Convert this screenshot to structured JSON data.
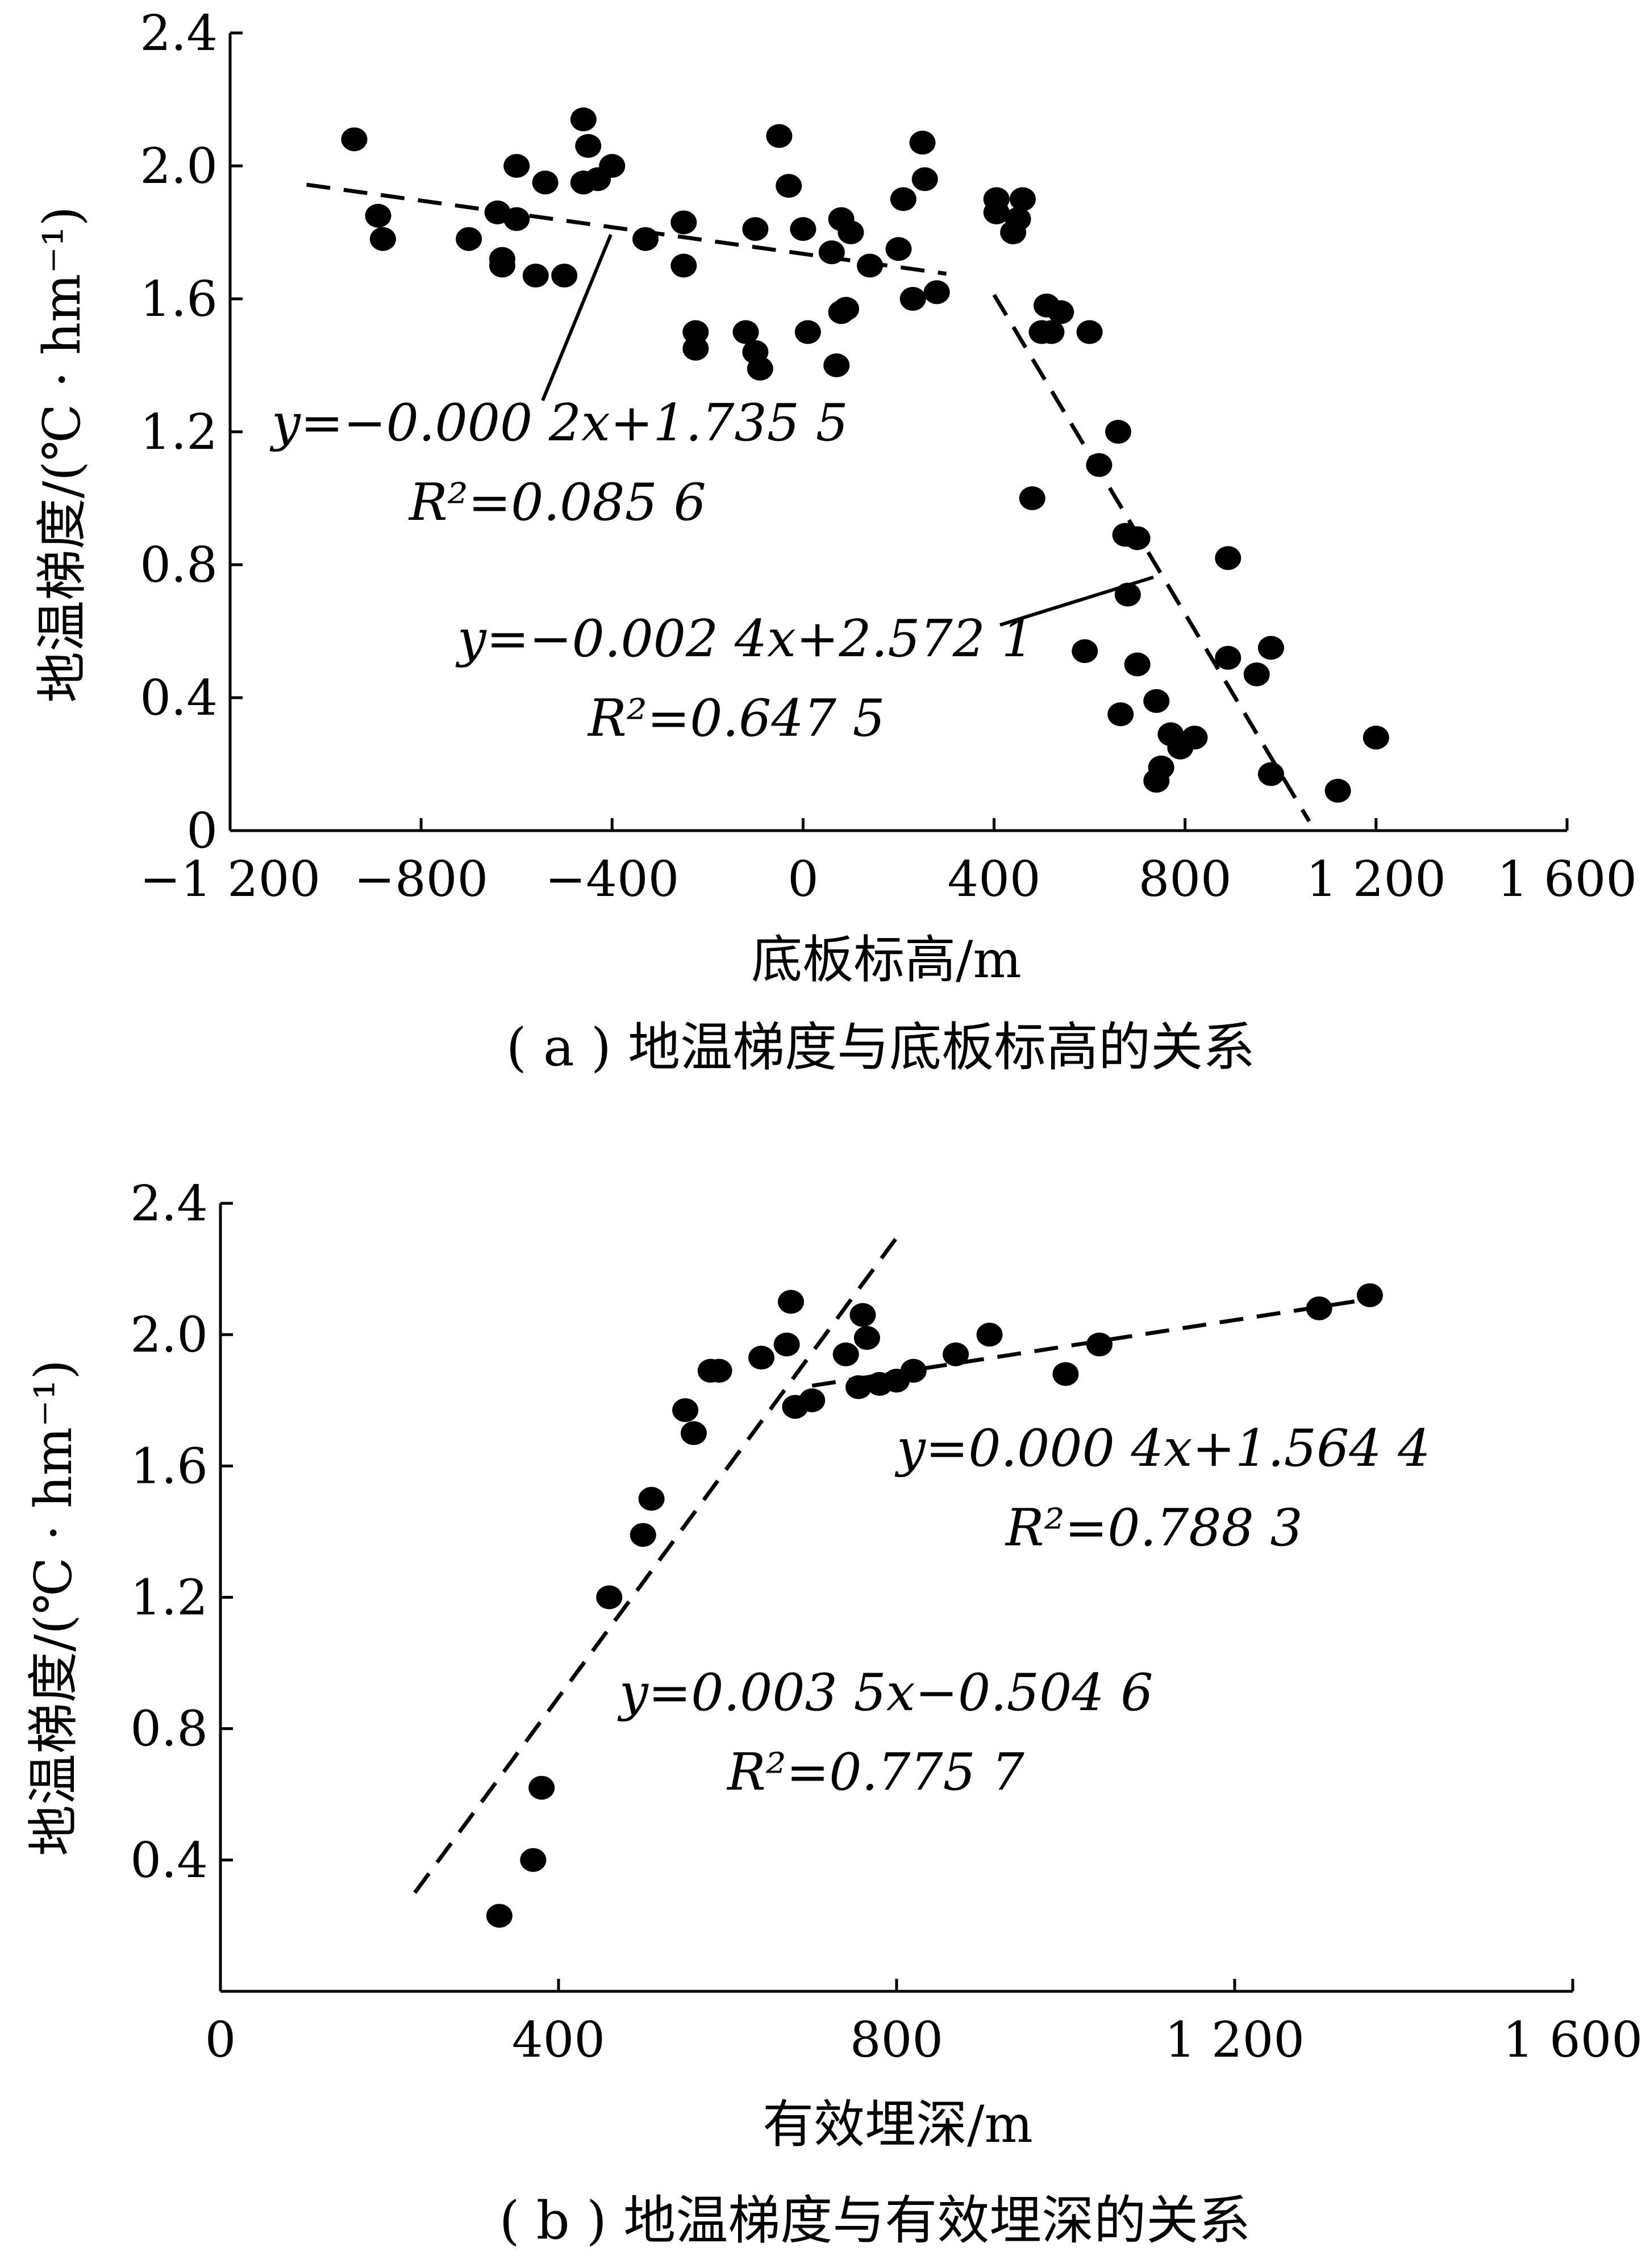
{
  "figure": {
    "panel_a": {
      "xlabel": "底板标高/m",
      "ylabel": "地温梯度/(℃ · hm⁻¹)",
      "caption": "( a ) 地温梯度与底板标高的关系",
      "xtick_labels": [
        "−1 200",
        "−800",
        "−400",
        "0",
        "400",
        "800",
        "1 200",
        "1 600"
      ],
      "ytick_labels": [
        "0",
        "0.4",
        "0.8",
        "1.2",
        "1.6",
        "2.0",
        "2.4"
      ],
      "fit1": {
        "eq": "y=−0.000 2x+1.735 5",
        "r2": "R²=0.085 6"
      },
      "fit2": {
        "eq": "y=−0.002 4x+2.572 1",
        "r2": "R²=0.647 5"
      }
    },
    "panel_b": {
      "xlabel": "有效埋深/m",
      "ylabel": "地温梯度/(℃ · hm⁻¹)",
      "caption": "( b ) 地温梯度与有效埋深的关系",
      "xtick_labels": [
        "0",
        "400",
        "800",
        "1 200",
        "1 600"
      ],
      "ytick_labels": [
        "0.4",
        "0.8",
        "1.2",
        "1.6",
        "2.0",
        "2.4"
      ],
      "fit1": {
        "eq": "y=0.003 5x−0.504 6",
        "r2": "R²=0.775 7"
      },
      "fit2": {
        "eq": "y=0.000 4x+1.564 4",
        "r2": "R²=0.788 3"
      }
    }
  },
  "chart_data": [
    {
      "type": "scatter",
      "xlabel": "底板标高/m",
      "ylabel": "地温梯度/(℃ · hm⁻¹)",
      "xlim": [
        -1200,
        1600
      ],
      "ylim": [
        0,
        2.4
      ],
      "grid": false,
      "points": [
        [
          -940,
          2.08
        ],
        [
          -890,
          1.85
        ],
        [
          -880,
          1.78
        ],
        [
          -700,
          1.78
        ],
        [
          -640,
          1.86
        ],
        [
          -630,
          1.72
        ],
        [
          -630,
          1.7
        ],
        [
          -600,
          2.0
        ],
        [
          -600,
          1.84
        ],
        [
          -560,
          1.67
        ],
        [
          -540,
          1.95
        ],
        [
          -500,
          1.67
        ],
        [
          -460,
          2.14
        ],
        [
          -460,
          1.95
        ],
        [
          -450,
          2.06
        ],
        [
          -430,
          1.96
        ],
        [
          -400,
          2.0
        ],
        [
          -330,
          1.78
        ],
        [
          -250,
          1.83
        ],
        [
          -250,
          1.7
        ],
        [
          -225,
          1.5
        ],
        [
          -225,
          1.45
        ],
        [
          -120,
          1.5
        ],
        [
          -100,
          1.81
        ],
        [
          -100,
          1.44
        ],
        [
          -90,
          1.39
        ],
        [
          -50,
          2.09
        ],
        [
          -30,
          1.94
        ],
        [
          0,
          1.81
        ],
        [
          10,
          1.5
        ],
        [
          60,
          1.74
        ],
        [
          70,
          1.4
        ],
        [
          80,
          1.84
        ],
        [
          80,
          1.56
        ],
        [
          90,
          1.57
        ],
        [
          100,
          1.8
        ],
        [
          140,
          1.7
        ],
        [
          200,
          1.75
        ],
        [
          210,
          1.9
        ],
        [
          230,
          1.6
        ],
        [
          250,
          2.07
        ],
        [
          255,
          1.96
        ],
        [
          280,
          1.62
        ],
        [
          405,
          1.9
        ],
        [
          405,
          1.86
        ],
        [
          440,
          1.8
        ],
        [
          450,
          1.84
        ],
        [
          460,
          1.9
        ],
        [
          480,
          1.0
        ],
        [
          500,
          1.5
        ],
        [
          510,
          1.58
        ],
        [
          520,
          1.5
        ],
        [
          540,
          1.56
        ],
        [
          590,
          0.54
        ],
        [
          600,
          1.5
        ],
        [
          620,
          1.1
        ],
        [
          660,
          1.2
        ],
        [
          665,
          0.35
        ],
        [
          675,
          0.89
        ],
        [
          680,
          0.71
        ],
        [
          700,
          0.88
        ],
        [
          700,
          0.5
        ],
        [
          740,
          0.39
        ],
        [
          740,
          0.15
        ],
        [
          750,
          0.19
        ],
        [
          770,
          0.29
        ],
        [
          790,
          0.25
        ],
        [
          820,
          0.28
        ],
        [
          890,
          0.52
        ],
        [
          890,
          0.82
        ],
        [
          950,
          0.47
        ],
        [
          980,
          0.55
        ],
        [
          980,
          0.17
        ],
        [
          1120,
          0.12
        ],
        [
          1200,
          0.28
        ]
      ],
      "fits": [
        {
          "equation": "y=−0.000 2x+1.735 5",
          "r2": 0.0856,
          "x_range": [
            -1040,
            300
          ],
          "slope": -0.0002,
          "intercept": 1.7355
        },
        {
          "equation": "y=−0.002 4x+2.572 1",
          "r2": 0.6475,
          "x_range": [
            400,
            1060
          ],
          "slope": -0.0024,
          "intercept": 2.5721
        }
      ]
    },
    {
      "type": "scatter",
      "xlabel": "有效埋深/m",
      "ylabel": "地温梯度/(℃ · hm⁻¹)",
      "xlim": [
        0,
        1600
      ],
      "ylim": [
        0,
        2.4
      ],
      "grid": false,
      "points": [
        [
          330,
          0.23
        ],
        [
          370,
          0.4
        ],
        [
          380,
          0.62
        ],
        [
          460,
          1.2
        ],
        [
          500,
          1.39
        ],
        [
          510,
          1.5
        ],
        [
          550,
          1.77
        ],
        [
          560,
          1.7
        ],
        [
          580,
          1.89
        ],
        [
          590,
          1.89
        ],
        [
          640,
          1.93
        ],
        [
          670,
          1.97
        ],
        [
          675,
          2.1
        ],
        [
          680,
          1.78
        ],
        [
          700,
          1.8
        ],
        [
          740,
          1.94
        ],
        [
          755,
          1.84
        ],
        [
          760,
          2.06
        ],
        [
          765,
          1.99
        ],
        [
          780,
          1.85
        ],
        [
          800,
          1.86
        ],
        [
          820,
          1.89
        ],
        [
          870,
          1.94
        ],
        [
          910,
          2.0
        ],
        [
          1000,
          1.88
        ],
        [
          1040,
          1.97
        ],
        [
          1300,
          2.08
        ],
        [
          1360,
          2.12
        ]
      ],
      "fits": [
        {
          "equation": "y=0.003 5x−0.504 6",
          "r2": 0.7757,
          "x_range": [
            230,
            800
          ],
          "slope": 0.0035,
          "intercept": -0.5046
        },
        {
          "equation": "y=0.000 4x+1.564 4",
          "r2": 0.7883,
          "x_range": [
            700,
            1360
          ],
          "slope": 0.0004,
          "intercept": 1.5644
        }
      ]
    }
  ]
}
